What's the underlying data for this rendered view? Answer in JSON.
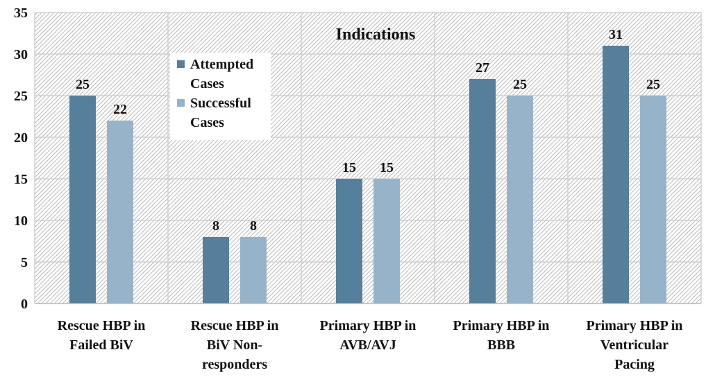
{
  "chart_data": {
    "type": "bar",
    "title": "Indications",
    "categories": [
      [
        "Rescue HBP in",
        "Failed BiV"
      ],
      [
        "Rescue HBP in",
        "BiV Non-",
        "responders"
      ],
      [
        "Primary HBP in",
        "AVB/AVJ"
      ],
      [
        "Primary HBP in",
        "BBB"
      ],
      [
        "Primary HBP in",
        "Ventricular",
        "Pacing"
      ]
    ],
    "series": [
      {
        "name": "Attempted Cases",
        "legend_lines": [
          "Attempted",
          "Cases"
        ],
        "color": "#567f9c",
        "values": [
          25,
          8,
          15,
          27,
          31
        ]
      },
      {
        "name": "Successful Cases",
        "legend_lines": [
          "Successful",
          "Cases"
        ],
        "color": "#97b3ca",
        "values": [
          22,
          8,
          15,
          25,
          25
        ]
      }
    ],
    "ylim": [
      0,
      35
    ],
    "yticks": [
      0,
      5,
      10,
      15,
      20,
      25,
      30,
      35
    ],
    "xlabel": "",
    "ylabel": "",
    "grid": true,
    "legend_position": "top-left",
    "background": "diagonal-hatch"
  }
}
